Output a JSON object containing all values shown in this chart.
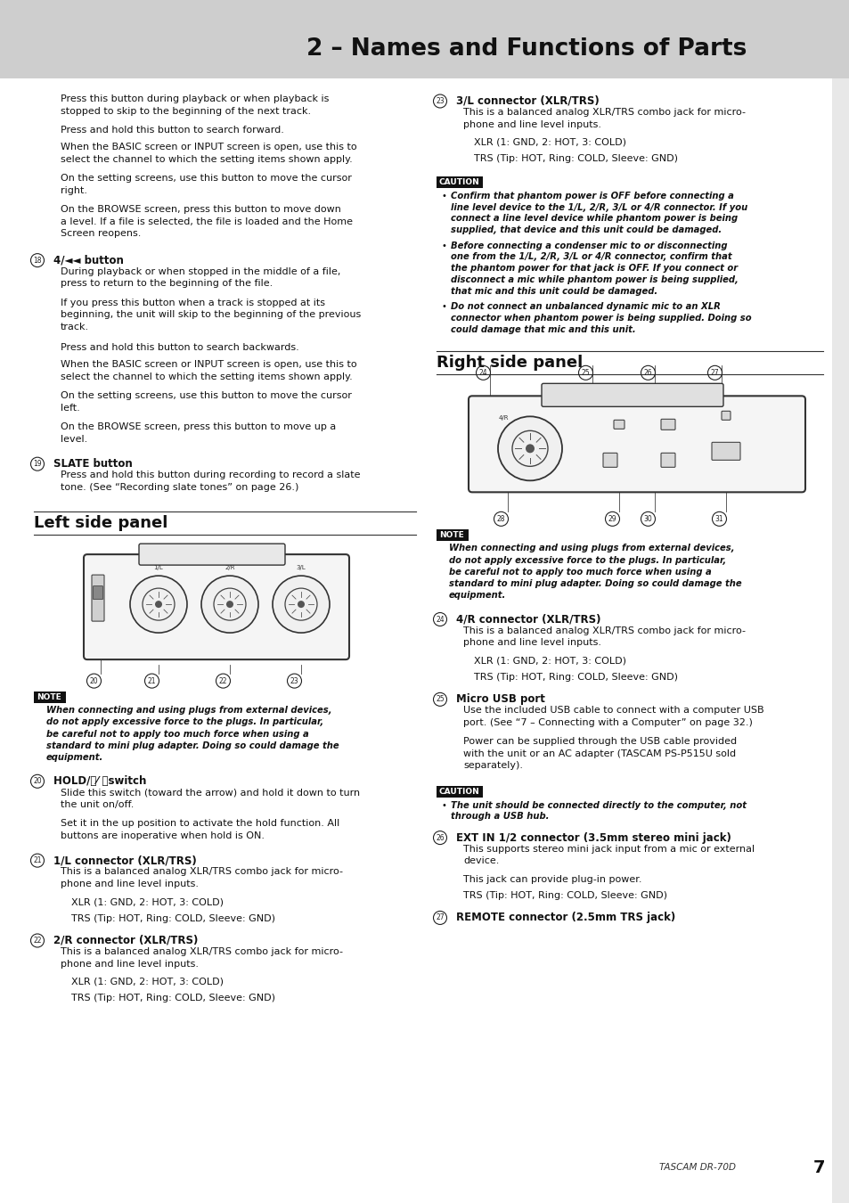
{
  "title": "2 – Names and Functions of Parts",
  "title_bg": "#d0d0d0",
  "page_bg": "#ffffff",
  "footer_text": "TASCAM DR-70D",
  "footer_page": "7",
  "left_col": {
    "intro_paragraphs": [
      "Press this button during playback or when playback is\nstopped to skip to the beginning of the next track.",
      "Press and hold this button to search forward.",
      "When the BASIC screen or INPUT screen is open, use this to\nselect the channel to which the setting items shown apply.",
      "On the setting screens, use this button to move the cursor\nright.",
      "On the BROWSE screen, press this button to move down\na level. If a file is selected, the file is loaded and the Home\nScreen reopens."
    ],
    "section18_title": "4/◄◄ button",
    "section18_num": "18",
    "section18_paras": [
      "During playback or when stopped in the middle of a file,\npress to return to the beginning of the file.",
      "If you press this button when a track is stopped at its\nbeginning, the unit will skip to the beginning of the previous\ntrack.",
      "Press and hold this button to search backwards.",
      "When the BASIC screen or INPUT screen is open, use this to\nselect the channel to which the setting items shown apply.",
      "On the setting screens, use this button to move the cursor\nleft.",
      "On the BROWSE screen, press this button to move up a\nlevel."
    ],
    "section19_title": "SLATE button",
    "section19_num": "19",
    "section19_paras": [
      "Press and hold this button during recording to record a slate\ntone. (See “Recording slate tones” on page 26.)"
    ],
    "left_panel_title": "Left side panel",
    "note_title": "NOTE",
    "note_text": "When connecting and using plugs from external devices,\ndo not apply excessive force to the plugs. In particular,\nbe careful not to apply too much force when using a\nstandard to mini plug adapter. Doing so could damage the\nequipment.",
    "section20_title": "HOLD/⏻⁄ ⏺switch",
    "section20_num": "20",
    "section20_paras": [
      "Slide this switch (toward the arrow) and hold it down to turn\nthe unit on/off.",
      "Set it in the up position to activate the hold function. All\nbuttons are inoperative when hold is ON."
    ],
    "section21_title": "1/L connector (XLR/TRS)",
    "section21_num": "21",
    "section21_paras": [
      "This is a balanced analog XLR/TRS combo jack for micro-\nphone and line level inputs.",
      "XLR (1: GND, 2: HOT, 3: COLD)",
      "TRS (Tip: HOT, Ring: COLD, Sleeve: GND)"
    ],
    "section22_title": "2/R connector (XLR/TRS)",
    "section22_num": "22",
    "section22_paras": [
      "This is a balanced analog XLR/TRS combo jack for micro-\nphone and line level inputs.",
      "XLR (1: GND, 2: HOT, 3: COLD)",
      "TRS (Tip: HOT, Ring: COLD, Sleeve: GND)"
    ]
  },
  "right_col": {
    "section23_title": "3/L connector (XLR/TRS)",
    "section23_num": "23",
    "section23_paras": [
      "This is a balanced analog XLR/TRS combo jack for micro-\nphone and line level inputs.",
      "XLR (1: GND, 2: HOT, 3: COLD)",
      "TRS (Tip: HOT, Ring: COLD, Sleeve: GND)"
    ],
    "caution_title": "CAUTION",
    "caution_bullets": [
      "Confirm that phantom power is OFF before connecting a\nline level device to the 1/L, 2/R, 3/L or 4/R connector. If you\nconnect a line level device while phantom power is being\nsupplied, that device and this unit could be damaged.",
      "Before connecting a condenser mic to or disconnecting\none from the 1/L, 2/R, 3/L or 4/R connector, confirm that\nthe phantom power for that jack is OFF. If you connect or\ndisconnect a mic while phantom power is being supplied,\nthat mic and this unit could be damaged.",
      "Do not connect an unbalanced dynamic mic to an XLR\nconnector when phantom power is being supplied. Doing so\ncould damage that mic and this unit."
    ],
    "right_panel_title": "Right side panel",
    "right_note_title": "NOTE",
    "right_note_text": "When connecting and using plugs from external devices,\ndo not apply excessive force to the plugs. In particular,\nbe careful not to apply too much force when using a\nstandard to mini plug adapter. Doing so could damage the\nequipment.",
    "section24_title": "4/R connector (XLR/TRS)",
    "section24_num": "24",
    "section24_paras": [
      "This is a balanced analog XLR/TRS combo jack for micro-\nphone and line level inputs.",
      "XLR (1: GND, 2: HOT, 3: COLD)",
      "TRS (Tip: HOT, Ring: COLD, Sleeve: GND)"
    ],
    "section25_title": "Micro USB port",
    "section25_num": "25",
    "section25_paras": [
      "Use the included USB cable to connect with a computer USB\nport. (See “7 – Connecting with a Computer” on page 32.)",
      "Power can be supplied through the USB cable provided\nwith the unit or an AC adapter (TASCAM PS-P515U sold\nseparately)."
    ],
    "caution2_title": "CAUTION",
    "caution2_text": "The unit should be connected directly to the computer, not\nthrough a USB hub.",
    "section26_title": "EXT IN 1/2 connector (3.5mm stereo mini jack)",
    "section26_num": "26",
    "section26_paras": [
      "This supports stereo mini jack input from a mic or external\ndevice.",
      "This jack can provide plug-in power.",
      "TRS (Tip: HOT, Ring: COLD, Sleeve: GND)"
    ],
    "section27_title": "REMOTE connector (2.5mm TRS jack)",
    "section27_num": "27"
  }
}
